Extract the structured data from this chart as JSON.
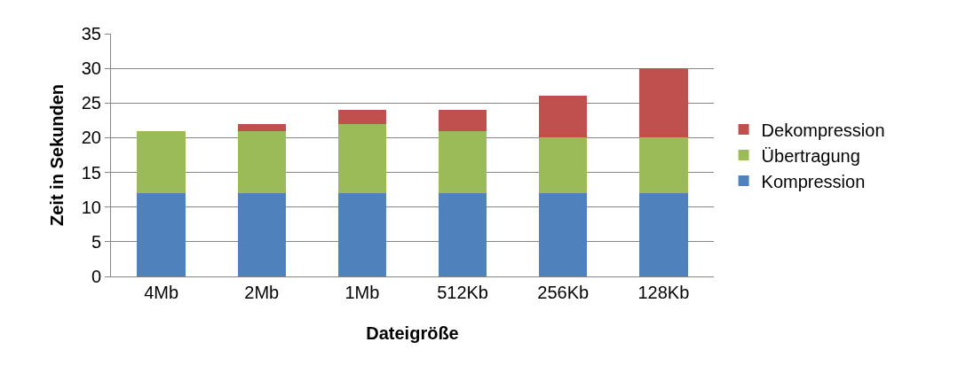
{
  "chart_data": {
    "type": "bar",
    "stacked": true,
    "xlabel": "Dateigröße",
    "ylabel": "Zeit in Sekunden",
    "categories": [
      "4Mb",
      "2Mb",
      "1Mb",
      "512Kb",
      "256Kb",
      "128Kb"
    ],
    "series": [
      {
        "name": "Kompression",
        "color": "#4f81bd",
        "values": [
          12,
          12,
          12,
          12,
          12,
          12
        ]
      },
      {
        "name": "Übertragung",
        "color": "#9bbb59",
        "values": [
          9,
          9,
          10,
          9,
          8,
          8
        ]
      },
      {
        "name": "Dekompression",
        "color": "#c0504d",
        "values": [
          0,
          1,
          2,
          3,
          6,
          10
        ]
      }
    ],
    "ylim": [
      0,
      35
    ],
    "yticks": [
      0,
      5,
      10,
      15,
      20,
      25,
      30,
      35
    ],
    "grid": "y",
    "legend": "right"
  }
}
